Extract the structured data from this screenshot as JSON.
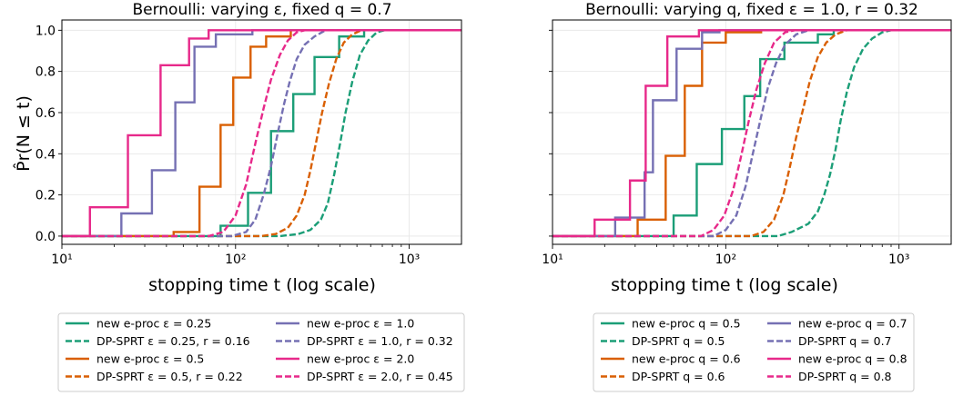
{
  "ylabel": "P̂r(N ≤ t)",
  "colors": {
    "teal": "#1b9e77",
    "orange": "#d95f02",
    "purple": "#7570b3",
    "pink": "#e7298a"
  },
  "chart_data": [
    {
      "type": "line",
      "title": "Bernoulli: varying ε, fixed q = 0.7",
      "xlabel": "stopping time t (log scale)",
      "ylabel": "P̂r(N ≤ t)",
      "xscale": "log",
      "xlim": [
        10,
        2000
      ],
      "ylim": [
        -0.04,
        1.05
      ],
      "xticks": [
        {
          "value": 10,
          "label": "10¹"
        },
        {
          "value": 100,
          "label": "10²"
        },
        {
          "value": 1000,
          "label": "10³"
        }
      ],
      "yticks": [
        {
          "value": 0.0,
          "label": "0.0"
        },
        {
          "value": 0.2,
          "label": "0.2"
        },
        {
          "value": 0.4,
          "label": "0.4"
        },
        {
          "value": 0.6,
          "label": "0.6"
        },
        {
          "value": 0.8,
          "label": "0.8"
        },
        {
          "value": 1.0,
          "label": "1.0"
        }
      ],
      "grid": true,
      "legend_placement": "below",
      "series": [
        {
          "name": "new e-proc ε = 0.25",
          "color": "#1b9e77",
          "style": "solid",
          "points": [
            [
              10,
              0
            ],
            [
              82,
              0
            ],
            [
              82,
              0.05
            ],
            [
              118,
              0.05
            ],
            [
              118,
              0.21
            ],
            [
              160,
              0.21
            ],
            [
              160,
              0.51
            ],
            [
              215,
              0.51
            ],
            [
              215,
              0.69
            ],
            [
              285,
              0.69
            ],
            [
              285,
              0.87
            ],
            [
              395,
              0.87
            ],
            [
              395,
              0.97
            ],
            [
              550,
              0.97
            ],
            [
              550,
              1
            ],
            [
              2000,
              1
            ]
          ]
        },
        {
          "name": "DP-SPRT ε = 0.25, r = 0.16",
          "color": "#1b9e77",
          "style": "dashed",
          "points": [
            [
              10,
              0
            ],
            [
              180,
              0
            ],
            [
              230,
              0.01
            ],
            [
              270,
              0.03
            ],
            [
              310,
              0.08
            ],
            [
              340,
              0.16
            ],
            [
              370,
              0.3
            ],
            [
              400,
              0.45
            ],
            [
              430,
              0.6
            ],
            [
              470,
              0.75
            ],
            [
              520,
              0.88
            ],
            [
              580,
              0.95
            ],
            [
              650,
              0.99
            ],
            [
              720,
              1
            ],
            [
              2000,
              1
            ]
          ]
        },
        {
          "name": "new e-proc ε = 0.5",
          "color": "#d95f02",
          "style": "solid",
          "points": [
            [
              10,
              0
            ],
            [
              44,
              0
            ],
            [
              44,
              0.02
            ],
            [
              62,
              0.02
            ],
            [
              62,
              0.24
            ],
            [
              82,
              0.24
            ],
            [
              82,
              0.54
            ],
            [
              97,
              0.54
            ],
            [
              97,
              0.77
            ],
            [
              122,
              0.77
            ],
            [
              122,
              0.92
            ],
            [
              150,
              0.92
            ],
            [
              150,
              0.97
            ],
            [
              208,
              0.97
            ],
            [
              208,
              1
            ],
            [
              2000,
              1
            ]
          ]
        },
        {
          "name": "DP-SPRT ε = 0.5, r = 0.22",
          "color": "#d95f02",
          "style": "dashed",
          "points": [
            [
              10,
              0
            ],
            [
              140,
              0
            ],
            [
              170,
              0.01
            ],
            [
              200,
              0.04
            ],
            [
              225,
              0.1
            ],
            [
              250,
              0.2
            ],
            [
              270,
              0.32
            ],
            [
              290,
              0.45
            ],
            [
              315,
              0.6
            ],
            [
              345,
              0.74
            ],
            [
              380,
              0.86
            ],
            [
              420,
              0.94
            ],
            [
              470,
              0.98
            ],
            [
              530,
              1
            ],
            [
              2000,
              1
            ]
          ]
        },
        {
          "name": "new e-proc ε = 1.0",
          "color": "#7570b3",
          "style": "solid",
          "points": [
            [
              10,
              0
            ],
            [
              22,
              0
            ],
            [
              22,
              0.11
            ],
            [
              33,
              0.11
            ],
            [
              33,
              0.32
            ],
            [
              45,
              0.32
            ],
            [
              45,
              0.65
            ],
            [
              58,
              0.65
            ],
            [
              58,
              0.92
            ],
            [
              77,
              0.92
            ],
            [
              77,
              0.98
            ],
            [
              125,
              0.98
            ],
            [
              125,
              1
            ],
            [
              2000,
              1
            ]
          ]
        },
        {
          "name": "DP-SPRT ε = 1.0, r = 0.32",
          "color": "#7570b3",
          "style": "dashed",
          "points": [
            [
              10,
              0
            ],
            [
              95,
              0
            ],
            [
              115,
              0.02
            ],
            [
              130,
              0.08
            ],
            [
              145,
              0.2
            ],
            [
              160,
              0.34
            ],
            [
              175,
              0.5
            ],
            [
              190,
              0.64
            ],
            [
              205,
              0.75
            ],
            [
              225,
              0.86
            ],
            [
              250,
              0.93
            ],
            [
              285,
              0.97
            ],
            [
              330,
              1
            ],
            [
              2000,
              1
            ]
          ]
        },
        {
          "name": "new e-proc ε = 2.0",
          "color": "#e7298a",
          "style": "solid",
          "points": [
            [
              10,
              0
            ],
            [
              14.5,
              0
            ],
            [
              14.5,
              0.14
            ],
            [
              24,
              0.14
            ],
            [
              24,
              0.49
            ],
            [
              37,
              0.49
            ],
            [
              37,
              0.83
            ],
            [
              54,
              0.83
            ],
            [
              54,
              0.96
            ],
            [
              70,
              0.96
            ],
            [
              70,
              1
            ],
            [
              2000,
              1
            ]
          ]
        },
        {
          "name": "DP-SPRT ε = 2.0, r = 0.45",
          "color": "#e7298a",
          "style": "dashed",
          "points": [
            [
              10,
              0
            ],
            [
              70,
              0
            ],
            [
              85,
              0.02
            ],
            [
              100,
              0.1
            ],
            [
              115,
              0.25
            ],
            [
              130,
              0.45
            ],
            [
              145,
              0.62
            ],
            [
              160,
              0.76
            ],
            [
              180,
              0.88
            ],
            [
              200,
              0.95
            ],
            [
              225,
              0.99
            ],
            [
              250,
              1
            ],
            [
              2000,
              1
            ]
          ]
        }
      ]
    },
    {
      "type": "line",
      "title": "Bernoulli: varying q, fixed ε = 1.0, r = 0.32",
      "xlabel": "stopping time t (log scale)",
      "ylabel": "",
      "xscale": "log",
      "xlim": [
        10,
        2000
      ],
      "ylim": [
        -0.04,
        1.05
      ],
      "xticks": [
        {
          "value": 10,
          "label": "10¹"
        },
        {
          "value": 100,
          "label": "10²"
        },
        {
          "value": 1000,
          "label": "10³"
        }
      ],
      "yticks": [
        0.0,
        0.2,
        0.4,
        0.6,
        0.8,
        1.0
      ],
      "grid": true,
      "legend_placement": "below",
      "series": [
        {
          "name": "new e-proc q = 0.5",
          "color": "#1b9e77",
          "style": "solid",
          "points": [
            [
              10,
              0
            ],
            [
              50,
              0
            ],
            [
              50,
              0.1
            ],
            [
              68,
              0.1
            ],
            [
              68,
              0.35
            ],
            [
              95,
              0.35
            ],
            [
              95,
              0.52
            ],
            [
              128,
              0.52
            ],
            [
              128,
              0.68
            ],
            [
              158,
              0.68
            ],
            [
              158,
              0.86
            ],
            [
              218,
              0.86
            ],
            [
              218,
              0.94
            ],
            [
              340,
              0.94
            ],
            [
              340,
              0.98
            ],
            [
              420,
              0.98
            ],
            [
              420,
              1
            ],
            [
              2000,
              1
            ]
          ]
        },
        {
          "name": "DP-SPRT q = 0.5",
          "color": "#1b9e77",
          "style": "dashed",
          "points": [
            [
              10,
              0
            ],
            [
              200,
              0
            ],
            [
              240,
              0.02
            ],
            [
              300,
              0.06
            ],
            [
              340,
              0.12
            ],
            [
              370,
              0.2
            ],
            [
              400,
              0.3
            ],
            [
              430,
              0.42
            ],
            [
              460,
              0.56
            ],
            [
              500,
              0.7
            ],
            [
              550,
              0.82
            ],
            [
              620,
              0.91
            ],
            [
              700,
              0.96
            ],
            [
              800,
              0.99
            ],
            [
              900,
              1
            ],
            [
              2000,
              1
            ]
          ]
        },
        {
          "name": "new e-proc q = 0.6",
          "color": "#d95f02",
          "style": "solid",
          "points": [
            [
              10,
              0
            ],
            [
              31,
              0
            ],
            [
              31,
              0.08
            ],
            [
              45,
              0.08
            ],
            [
              45,
              0.39
            ],
            [
              58,
              0.39
            ],
            [
              58,
              0.73
            ],
            [
              73,
              0.73
            ],
            [
              73,
              0.94
            ],
            [
              100,
              0.94
            ],
            [
              100,
              0.99
            ],
            [
              160,
              0.99
            ],
            [
              160,
              1
            ],
            [
              2000,
              1
            ]
          ]
        },
        {
          "name": "DP-SPRT q = 0.6",
          "color": "#d95f02",
          "style": "dashed",
          "points": [
            [
              10,
              0
            ],
            [
              140,
              0
            ],
            [
              165,
              0.02
            ],
            [
              190,
              0.08
            ],
            [
              215,
              0.2
            ],
            [
              235,
              0.34
            ],
            [
              255,
              0.48
            ],
            [
              280,
              0.62
            ],
            [
              305,
              0.75
            ],
            [
              340,
              0.87
            ],
            [
              380,
              0.94
            ],
            [
              430,
              0.98
            ],
            [
              500,
              1
            ],
            [
              2000,
              1
            ]
          ]
        },
        {
          "name": "new e-proc q = 0.7",
          "color": "#7570b3",
          "style": "solid",
          "points": [
            [
              10,
              0
            ],
            [
              23,
              0
            ],
            [
              23,
              0.09
            ],
            [
              34,
              0.09
            ],
            [
              34,
              0.31
            ],
            [
              38,
              0.31
            ],
            [
              38,
              0.66
            ],
            [
              52,
              0.66
            ],
            [
              52,
              0.91
            ],
            [
              73,
              0.91
            ],
            [
              73,
              0.99
            ],
            [
              92,
              0.99
            ],
            [
              92,
              1
            ],
            [
              2000,
              1
            ]
          ]
        },
        {
          "name": "DP-SPRT q = 0.7",
          "color": "#7570b3",
          "style": "dashed",
          "points": [
            [
              10,
              0
            ],
            [
              85,
              0
            ],
            [
              100,
              0.03
            ],
            [
              115,
              0.1
            ],
            [
              130,
              0.24
            ],
            [
              145,
              0.42
            ],
            [
              160,
              0.58
            ],
            [
              175,
              0.72
            ],
            [
              195,
              0.84
            ],
            [
              220,
              0.93
            ],
            [
              255,
              0.98
            ],
            [
              300,
              1
            ],
            [
              2000,
              1
            ]
          ]
        },
        {
          "name": "new e-proc q = 0.8",
          "color": "#e7298a",
          "style": "solid",
          "points": [
            [
              10,
              0
            ],
            [
              17.5,
              0
            ],
            [
              17.5,
              0.08
            ],
            [
              28,
              0.08
            ],
            [
              28,
              0.27
            ],
            [
              34.5,
              0.27
            ],
            [
              34.5,
              0.73
            ],
            [
              46,
              0.73
            ],
            [
              46,
              0.97
            ],
            [
              70,
              0.97
            ],
            [
              70,
              1
            ],
            [
              2000,
              1
            ]
          ]
        },
        {
          "name": "DP-SPRT q = 0.8",
          "color": "#e7298a",
          "style": "dashed",
          "points": [
            [
              10,
              0
            ],
            [
              72,
              0
            ],
            [
              85,
              0.03
            ],
            [
              98,
              0.1
            ],
            [
              110,
              0.22
            ],
            [
              122,
              0.38
            ],
            [
              135,
              0.55
            ],
            [
              150,
              0.71
            ],
            [
              168,
              0.84
            ],
            [
              190,
              0.94
            ],
            [
              220,
              0.99
            ],
            [
              250,
              1
            ],
            [
              2000,
              1
            ]
          ]
        }
      ]
    }
  ]
}
